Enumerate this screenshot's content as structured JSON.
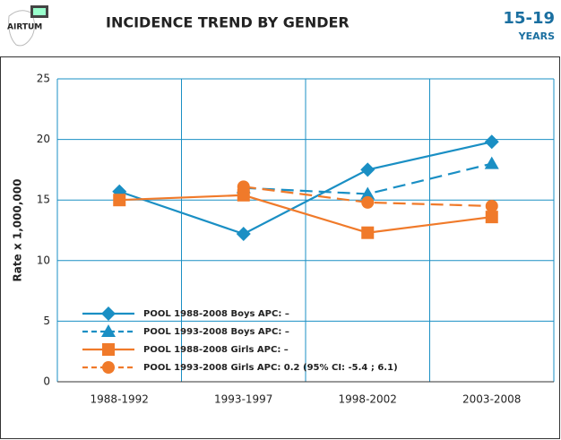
{
  "header": {
    "logo": "AIRTUM",
    "title": "INCIDENCE TREND BY GENDER",
    "age": "15-19",
    "age_unit": "YEARS"
  },
  "chart_data": {
    "type": "line",
    "categories": [
      "1988-1992",
      "1993-1997",
      "1998-2002",
      "2003-2008"
    ],
    "y_label": "Rate x 1,000,000",
    "ylim": [
      0,
      25
    ],
    "yticks": [
      0,
      5,
      10,
      15,
      20,
      25
    ],
    "grid": true,
    "legend": "lower left",
    "series": [
      {
        "name": "POOL 1988-2008 Boys APC: –",
        "color": "#1a8fc4",
        "marker": "diamond",
        "dashed": false,
        "values": [
          15.7,
          12.2,
          17.5,
          19.8
        ]
      },
      {
        "name": "POOL 1993-2008 Boys APC: –",
        "color": "#1a8fc4",
        "marker": "triangle",
        "dashed": true,
        "values": [
          null,
          16.0,
          15.5,
          18.0
        ]
      },
      {
        "name": "POOL 1988-2008 Girls APC: –",
        "color": "#f07a2a",
        "marker": "square",
        "dashed": false,
        "values": [
          15.0,
          15.4,
          12.3,
          13.6
        ]
      },
      {
        "name": "POOL 1993-2008 Girls APC: 0.2 (95% CI: -5.4 ; 6.1)",
        "color": "#f07a2a",
        "marker": "circle",
        "dashed": true,
        "values": [
          null,
          16.1,
          14.8,
          14.5
        ]
      }
    ]
  }
}
